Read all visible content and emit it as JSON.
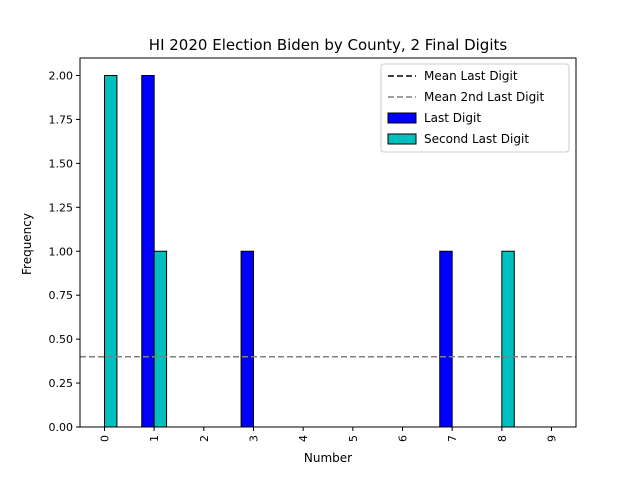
{
  "chart_data": {
    "type": "bar",
    "title": "HI 2020 Election Biden by County, 2 Final Digits",
    "xlabel": "Number",
    "ylabel": "Frequency",
    "categories": [
      "0",
      "1",
      "2",
      "3",
      "4",
      "5",
      "6",
      "7",
      "8",
      "9"
    ],
    "series": [
      {
        "name": "Last Digit",
        "color": "#0000ff",
        "values": [
          0,
          2,
          0,
          1,
          0,
          0,
          0,
          1,
          0,
          0
        ]
      },
      {
        "name": "Second Last Digit",
        "color": "#00bfbf",
        "values": [
          2,
          1,
          0,
          0,
          0,
          0,
          0,
          0,
          1,
          0
        ]
      }
    ],
    "reference_lines": [
      {
        "name": "Mean Last Digit",
        "value": 0.4,
        "color": "#000000",
        "style": "dashed"
      },
      {
        "name": "Mean 2nd Last Digit",
        "value": 0.4,
        "color": "#808080",
        "style": "dashed"
      }
    ],
    "ylim": [
      0,
      2.0
    ],
    "yticks": [
      "0.00",
      "0.25",
      "0.50",
      "0.75",
      "1.00",
      "1.25",
      "1.50",
      "1.75",
      "2.00"
    ],
    "grid": false,
    "legend_position": "top-right"
  }
}
